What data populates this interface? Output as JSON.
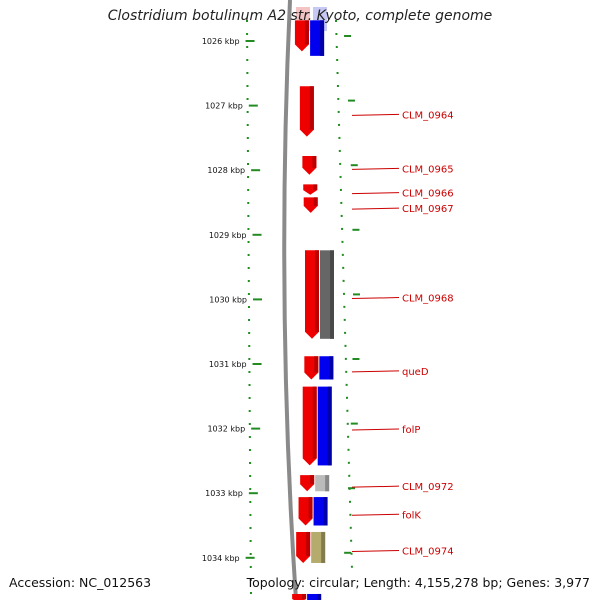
{
  "title": "Clostridium botulinum A2 str. Kyoto, complete genome",
  "footer": {
    "accession": "Accession: NC_012563",
    "summary": "Topology: circular; Length: 4,155,278 bp; Genes: 3,977"
  },
  "colors": {
    "forward_gene": "#ee0000",
    "blue": "#0000ee",
    "gray": "#666666",
    "light_gray": "#bbbbbb",
    "olive": "#b5ab6c",
    "label": "#cc0000",
    "tick": "#228b22"
  },
  "ruler": {
    "unit": "kbp",
    "start": 1026,
    "end": 1034
  },
  "genes": [
    {
      "name": "",
      "start": 1025.68,
      "end": 1026.16
    },
    {
      "name": "CLM_0964",
      "start": 1026.7,
      "end": 1027.48
    },
    {
      "name": "CLM_0965",
      "start": 1027.78,
      "end": 1028.07
    },
    {
      "name": "CLM_0966",
      "start": 1028.22,
      "end": 1028.38
    },
    {
      "name": "CLM_0967",
      "start": 1028.42,
      "end": 1028.66
    },
    {
      "name": "CLM_0968",
      "start": 1029.24,
      "end": 1030.61
    },
    {
      "name": "queD",
      "start": 1030.88,
      "end": 1031.24
    },
    {
      "name": "folP",
      "start": 1031.35,
      "end": 1032.57
    },
    {
      "name": "CLM_0972",
      "start": 1032.72,
      "end": 1032.97
    },
    {
      "name": "folK",
      "start": 1033.06,
      "end": 1033.5
    },
    {
      "name": "CLM_0974",
      "start": 1033.6,
      "end": 1034.08
    },
    {
      "name": "",
      "start": 1034.56,
      "end": 1034.7
    }
  ],
  "partners": [
    {
      "color": "blue",
      "start": 1025.68,
      "end": 1026.23
    },
    {
      "color": "gray",
      "start": 1029.24,
      "end": 1030.61
    },
    {
      "color": "blue",
      "start": 1030.88,
      "end": 1031.24
    },
    {
      "color": "blue",
      "start": 1031.35,
      "end": 1032.57
    },
    {
      "color": "light_gray",
      "start": 1032.72,
      "end": 1032.97
    },
    {
      "color": "blue",
      "start": 1033.06,
      "end": 1033.5
    },
    {
      "color": "olive",
      "start": 1033.6,
      "end": 1034.08
    },
    {
      "color": "blue",
      "start": 1034.56,
      "end": 1034.7
    }
  ]
}
